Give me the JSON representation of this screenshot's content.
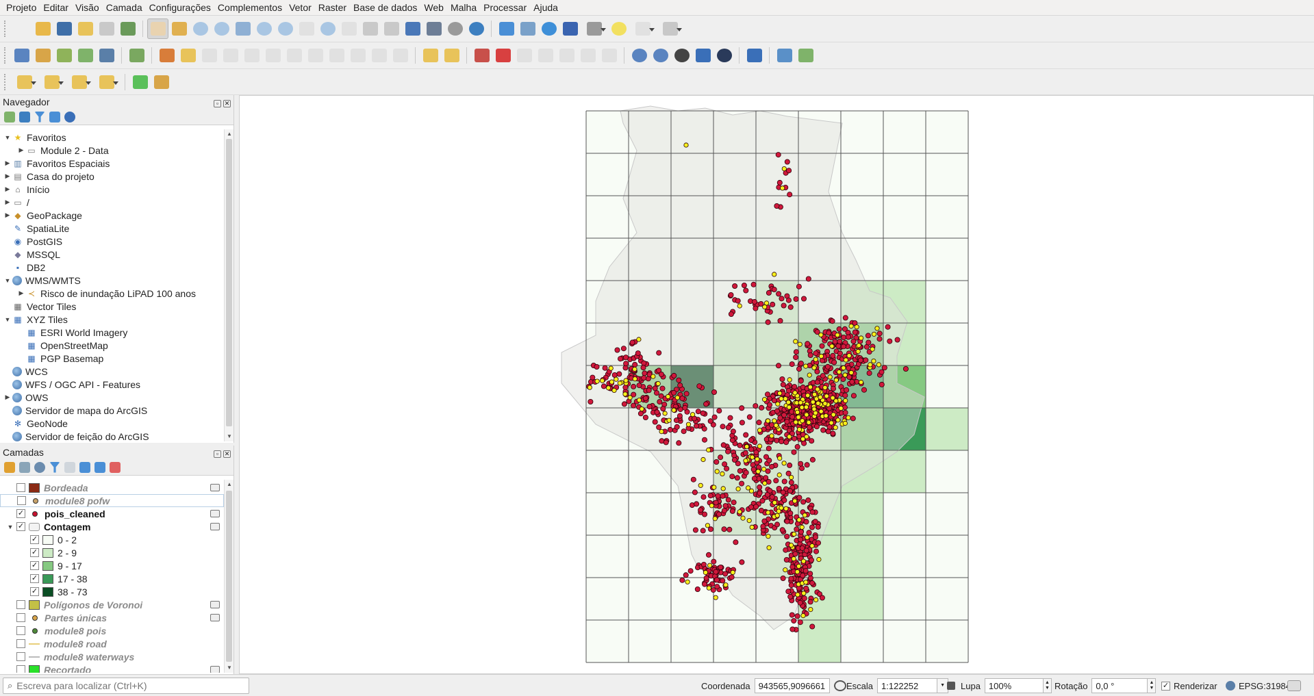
{
  "menubar": [
    "Projeto",
    "Editar",
    "Visão",
    "Camada",
    "Configurações",
    "Complementos",
    "Vetor",
    "Raster",
    "Base de dados",
    "Web",
    "Malha",
    "Processar",
    "Ajuda"
  ],
  "navigator": {
    "title": "Navegador",
    "items": [
      {
        "label": "Favoritos",
        "icon": "star-icon",
        "level": 0,
        "expand": "open"
      },
      {
        "label": "Module 2 - Data",
        "icon": "folder-icon",
        "level": 1,
        "expand": "closed"
      },
      {
        "label": "Favoritos Espaciais",
        "icon": "spatial-bookmark-icon",
        "level": 0,
        "expand": "closed"
      },
      {
        "label": "Casa do projeto",
        "icon": "project-home-icon",
        "level": 0,
        "expand": "closed"
      },
      {
        "label": "Início",
        "icon": "home-icon",
        "level": 0,
        "expand": "closed"
      },
      {
        "label": "/",
        "icon": "folder-icon",
        "level": 0,
        "expand": "closed"
      },
      {
        "label": "GeoPackage",
        "icon": "geopackage-icon",
        "level": 0,
        "expand": "closed"
      },
      {
        "label": "SpatiaLite",
        "icon": "spatialite-icon",
        "level": 0,
        "expand": "none"
      },
      {
        "label": "PostGIS",
        "icon": "postgis-icon",
        "level": 0,
        "expand": "none"
      },
      {
        "label": "MSSQL",
        "icon": "mssql-icon",
        "level": 0,
        "expand": "none"
      },
      {
        "label": "DB2",
        "icon": "db2-icon",
        "level": 0,
        "expand": "none"
      },
      {
        "label": "WMS/WMTS",
        "icon": "globe-icon",
        "level": 0,
        "expand": "open"
      },
      {
        "label": "Risco de inundação LiPAD 100 anos",
        "icon": "wms-layer-icon",
        "level": 1,
        "expand": "closed"
      },
      {
        "label": "Vector Tiles",
        "icon": "vector-tiles-icon",
        "level": 0,
        "expand": "none"
      },
      {
        "label": "XYZ Tiles",
        "icon": "xyz-tiles-icon",
        "level": 0,
        "expand": "open"
      },
      {
        "label": "ESRI World Imagery",
        "icon": "xyz-tiles-icon",
        "level": 1,
        "expand": "none"
      },
      {
        "label": "OpenStreetMap",
        "icon": "xyz-tiles-icon",
        "level": 1,
        "expand": "none"
      },
      {
        "label": "PGP Basemap",
        "icon": "xyz-tiles-icon",
        "level": 1,
        "expand": "none"
      },
      {
        "label": "WCS",
        "icon": "globe-icon",
        "level": 0,
        "expand": "none"
      },
      {
        "label": "WFS / OGC API - Features",
        "icon": "globe-icon",
        "level": 0,
        "expand": "none"
      },
      {
        "label": "OWS",
        "icon": "globe-icon",
        "level": 0,
        "expand": "closed"
      },
      {
        "label": "Servidor de mapa do ArcGIS",
        "icon": "globe-icon",
        "level": 0,
        "expand": "none"
      },
      {
        "label": "GeoNode",
        "icon": "geonode-icon",
        "level": 0,
        "expand": "none"
      },
      {
        "label": "Servidor de feição do ArcGIS",
        "icon": "globe-icon",
        "level": 0,
        "expand": "none"
      }
    ]
  },
  "layers": {
    "title": "Camadas",
    "items": [
      {
        "label": "Bordeada",
        "checked": false,
        "sym": "fill",
        "color": "#8b2a14",
        "active": false,
        "level": 0,
        "ind": true
      },
      {
        "label": "module8 pofw",
        "checked": false,
        "sym": "point",
        "color": "#c8a36b",
        "active": false,
        "level": 0,
        "selected": true
      },
      {
        "label": "pois_cleaned",
        "checked": true,
        "sym": "point",
        "color": "#c8102e",
        "active": true,
        "level": 0,
        "ind": true
      },
      {
        "label": "Contagem",
        "checked": true,
        "sym": "group",
        "color": "#cccccc",
        "active": true,
        "level": 0,
        "expand": true,
        "ind": true
      },
      {
        "label": "0 - 2",
        "checked": true,
        "sym": "fill",
        "color": "#f7fcf5",
        "active": "class",
        "level": 1
      },
      {
        "label": "2 - 9",
        "checked": true,
        "sym": "fill",
        "color": "#cdebc5",
        "active": "class",
        "level": 1
      },
      {
        "label": "9 - 17",
        "checked": true,
        "sym": "fill",
        "color": "#86c982",
        "active": "class",
        "level": 1
      },
      {
        "label": "17 - 38",
        "checked": true,
        "sym": "fill",
        "color": "#3a9a58",
        "active": "class",
        "level": 1
      },
      {
        "label": "38 - 73",
        "checked": true,
        "sym": "fill",
        "color": "#0b4e24",
        "active": "class",
        "level": 1
      },
      {
        "label": "Polígonos de Voronoi",
        "checked": false,
        "sym": "fill",
        "color": "#c3c046",
        "active": false,
        "level": 0,
        "ind": true
      },
      {
        "label": "Partes únicas",
        "checked": false,
        "sym": "point",
        "color": "#d9a54b",
        "active": false,
        "level": 0,
        "ind": true
      },
      {
        "label": "module8 pois",
        "checked": false,
        "sym": "point",
        "color": "#4f8a3a",
        "active": false,
        "level": 0
      },
      {
        "label": "module8 road",
        "checked": false,
        "sym": "line",
        "color": "#e8cf7a",
        "active": false,
        "level": 0
      },
      {
        "label": "module8 waterways",
        "checked": false,
        "sym": "line",
        "color": "#bbbbbb",
        "active": false,
        "level": 0
      },
      {
        "label": "Recortado",
        "checked": false,
        "sym": "fill",
        "color": "#2ae02a",
        "active": false,
        "level": 0,
        "ind": true
      }
    ]
  },
  "statusbar": {
    "locator_placeholder": "Escreva para localizar (Ctrl+K)",
    "coord_label": "Coordenada",
    "coord_value": "943565,9096661",
    "scale_label": "Escala",
    "scale_value": "1:122252",
    "magnifier_label": "Lupa",
    "magnifier_value": "100%",
    "rotation_label": "Rotação",
    "rotation_value": "0,0 °",
    "render_label": "Renderizar",
    "render_checked": true,
    "crs": "EPSG:31984"
  },
  "map": {
    "grid_cols": 9,
    "grid_rows": 13,
    "class_colors": [
      "#f7fcf5",
      "#cdebc5",
      "#86c982",
      "#3a9a58",
      "#0b4e24"
    ],
    "classes": [
      [
        0,
        0,
        0,
        0,
        0,
        0,
        0,
        0,
        0
      ],
      [
        0,
        0,
        0,
        0,
        0,
        0,
        0,
        0,
        0
      ],
      [
        0,
        0,
        0,
        0,
        0,
        0,
        0,
        0,
        0
      ],
      [
        0,
        0,
        0,
        0,
        0,
        0,
        0,
        0,
        0
      ],
      [
        0,
        0,
        0,
        0,
        1,
        0,
        1,
        1,
        0
      ],
      [
        0,
        0,
        0,
        1,
        1,
        2,
        2,
        1,
        0
      ],
      [
        0,
        2,
        4,
        1,
        1,
        2,
        3,
        2,
        0
      ],
      [
        0,
        0,
        0,
        0,
        1,
        1,
        2,
        3,
        1
      ],
      [
        0,
        0,
        0,
        1,
        1,
        1,
        1,
        1,
        0
      ],
      [
        0,
        0,
        0,
        1,
        1,
        1,
        1,
        0,
        0
      ],
      [
        0,
        0,
        0,
        0,
        1,
        1,
        1,
        0,
        0
      ],
      [
        0,
        0,
        0,
        0,
        0,
        1,
        1,
        0,
        0
      ],
      [
        0,
        0,
        0,
        0,
        0,
        1,
        0,
        0,
        0
      ]
    ]
  }
}
